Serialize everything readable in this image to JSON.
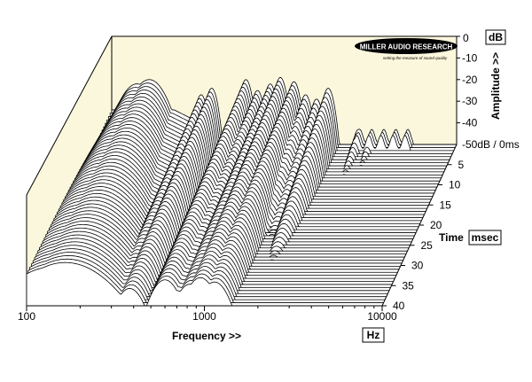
{
  "chart_data": {
    "type": "waterfall",
    "x_axis": {
      "label": "Frequency >>",
      "unit": "Hz",
      "scale": "log",
      "range": [
        100,
        10000
      ],
      "ticks": [
        "100",
        "1000",
        "10000"
      ]
    },
    "y_axis": {
      "label": "Amplitude >>",
      "unit": "dB",
      "range": [
        -50,
        0
      ],
      "ticks": [
        "0",
        "-10",
        "-20",
        "-30",
        "-40"
      ],
      "floor_label": "-50dB / 0ms"
    },
    "z_axis": {
      "label": "Time",
      "unit": "msec",
      "range": [
        0,
        40
      ],
      "ticks": [
        "5",
        "10",
        "15",
        "20",
        "25",
        "30",
        "35",
        "40"
      ]
    },
    "resonances": [
      {
        "freq": 140,
        "amp": -22
      },
      {
        "freq": 165,
        "amp": -20
      },
      {
        "freq": 330,
        "amp": -27
      },
      {
        "freq": 380,
        "amp": -24
      },
      {
        "freq": 600,
        "amp": -20
      },
      {
        "freq": 700,
        "amp": -25
      },
      {
        "freq": 830,
        "amp": -22
      },
      {
        "freq": 950,
        "amp": -19
      },
      {
        "freq": 1140,
        "amp": -21
      },
      {
        "freq": 1330,
        "amp": -27
      },
      {
        "freq": 1540,
        "amp": -29
      },
      {
        "freq": 1800,
        "amp": -24
      },
      {
        "freq": 2700,
        "amp": -43
      },
      {
        "freq": 3200,
        "amp": -45
      }
    ],
    "slice_count": 54,
    "colors": {
      "wall": "#fbf7dc",
      "trace": "#000000",
      "fill": "#ffffff"
    }
  },
  "logo": {
    "name": "MILLER AUDIO RESEARCH",
    "tagline": "setting the measure of sound quality"
  }
}
